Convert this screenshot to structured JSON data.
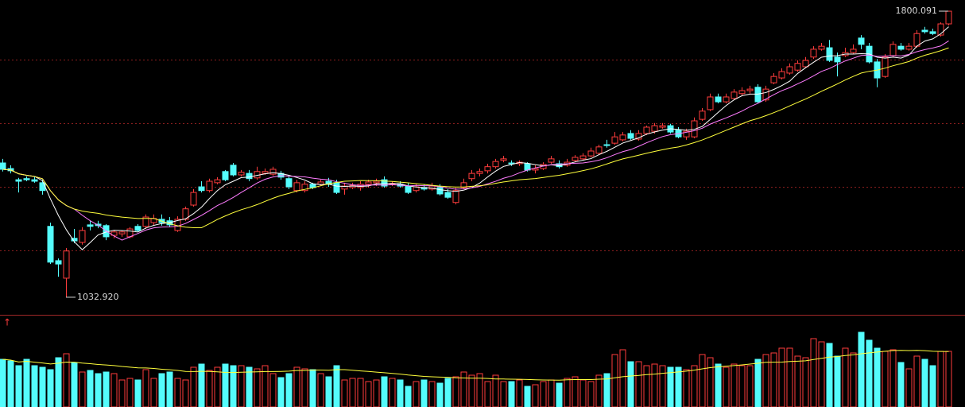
{
  "chart_data": {
    "type": "candlestick",
    "open": [
      1393,
      1378,
      1348,
      1351,
      1348,
      1340,
      1223,
      1131,
      1084,
      1191,
      1180,
      1227,
      1229,
      1225,
      1199,
      1203,
      1195,
      1223,
      1223,
      1233,
      1242,
      1238,
      1212,
      1242,
      1280,
      1329,
      1319,
      1340,
      1370,
      1387,
      1361,
      1365,
      1353,
      1365,
      1363,
      1365,
      1351,
      1319,
      1319,
      1336,
      1336,
      1344,
      1340,
      1323,
      1327,
      1327,
      1336,
      1340,
      1348,
      1336,
      1336,
      1331,
      1319,
      1327,
      1323,
      1327,
      1314,
      1287,
      1327,
      1351,
      1365,
      1372,
      1383,
      1400,
      1393,
      1391,
      1391,
      1374,
      1378,
      1395,
      1391,
      1387,
      1400,
      1404,
      1412,
      1419,
      1442,
      1446,
      1455,
      1472,
      1457,
      1472,
      1478,
      1489,
      1493,
      1481,
      1463,
      1463,
      1510,
      1536,
      1570,
      1557,
      1566,
      1579,
      1587,
      1596,
      1562,
      1608,
      1621,
      1634,
      1642,
      1651,
      1677,
      1698,
      1702,
      1677,
      1681,
      1689,
      1728,
      1706,
      1664,
      1625,
      1681,
      1706,
      1698,
      1706,
      1749,
      1745,
      1736,
      1766
    ],
    "high": [
      1404,
      1387,
      1353,
      1357,
      1357,
      1348,
      1233,
      1137,
      1165,
      1216,
      1221,
      1238,
      1238,
      1229,
      1212,
      1212,
      1221,
      1229,
      1255,
      1255,
      1255,
      1248,
      1250,
      1276,
      1323,
      1344,
      1351,
      1355,
      1374,
      1393,
      1374,
      1374,
      1383,
      1378,
      1383,
      1372,
      1357,
      1348,
      1344,
      1340,
      1348,
      1353,
      1348,
      1340,
      1340,
      1344,
      1348,
      1351,
      1357,
      1344,
      1344,
      1340,
      1336,
      1336,
      1340,
      1336,
      1323,
      1327,
      1351,
      1374,
      1378,
      1391,
      1404,
      1412,
      1400,
      1400,
      1395,
      1387,
      1395,
      1412,
      1400,
      1404,
      1414,
      1419,
      1434,
      1442,
      1455,
      1476,
      1476,
      1481,
      1481,
      1493,
      1500,
      1500,
      1498,
      1489,
      1485,
      1515,
      1540,
      1579,
      1579,
      1579,
      1591,
      1596,
      1600,
      1604,
      1600,
      1634,
      1647,
      1660,
      1668,
      1677,
      1706,
      1715,
      1723,
      1689,
      1702,
      1711,
      1736,
      1715,
      1672,
      1685,
      1719,
      1715,
      1715,
      1749,
      1758,
      1753,
      1770,
      1800.091
    ],
    "low": [
      1370,
      1365,
      1314,
      1344,
      1340,
      1308,
      1122,
      1088,
      1032.92,
      1178,
      1174,
      1212,
      1218,
      1186,
      1191,
      1195,
      1191,
      1208,
      1216,
      1227,
      1225,
      1221,
      1208,
      1238,
      1276,
      1314,
      1314,
      1336,
      1344,
      1357,
      1357,
      1344,
      1348,
      1361,
      1359,
      1348,
      1323,
      1314,
      1314,
      1323,
      1331,
      1329,
      1310,
      1308,
      1323,
      1319,
      1327,
      1331,
      1327,
      1331,
      1327,
      1310,
      1314,
      1319,
      1319,
      1306,
      1297,
      1282,
      1323,
      1344,
      1357,
      1365,
      1378,
      1395,
      1385,
      1385,
      1370,
      1365,
      1374,
      1391,
      1378,
      1383,
      1395,
      1400,
      1408,
      1414,
      1434,
      1442,
      1451,
      1455,
      1453,
      1468,
      1472,
      1485,
      1472,
      1459,
      1455,
      1459,
      1506,
      1532,
      1553,
      1553,
      1562,
      1574,
      1579,
      1553,
      1557,
      1604,
      1617,
      1630,
      1638,
      1647,
      1672,
      1694,
      1664,
      1625,
      1677,
      1685,
      1698,
      1660,
      1596,
      1621,
      1677,
      1694,
      1694,
      1702,
      1740,
      1736,
      1732,
      1762
    ],
    "close": [
      1376,
      1372,
      1344,
      1348,
      1344,
      1319,
      1127,
      1122,
      1157,
      1184,
      1212,
      1223,
      1225,
      1195,
      1208,
      1208,
      1216,
      1212,
      1248,
      1244,
      1233,
      1227,
      1242,
      1270,
      1314,
      1319,
      1344,
      1348,
      1348,
      1361,
      1368,
      1351,
      1370,
      1370,
      1376,
      1355,
      1329,
      1340,
      1336,
      1327,
      1342,
      1336,
      1314,
      1331,
      1333,
      1336,
      1342,
      1344,
      1331,
      1338,
      1331,
      1314,
      1329,
      1323,
      1331,
      1310,
      1301,
      1319,
      1340,
      1365,
      1370,
      1383,
      1397,
      1404,
      1391,
      1395,
      1374,
      1378,
      1389,
      1404,
      1383,
      1395,
      1408,
      1412,
      1425,
      1436,
      1440,
      1463,
      1468,
      1459,
      1472,
      1489,
      1493,
      1493,
      1476,
      1463,
      1478,
      1506,
      1532,
      1570,
      1557,
      1570,
      1583,
      1587,
      1591,
      1557,
      1591,
      1625,
      1638,
      1651,
      1660,
      1668,
      1698,
      1706,
      1668,
      1664,
      1689,
      1698,
      1711,
      1664,
      1621,
      1677,
      1711,
      1698,
      1706,
      1740,
      1745,
      1740,
      1766,
      1800
    ],
    "ylim": [
      988,
      1830
    ],
    "up_color": "#ff3c3c",
    "down_color": "#54fcfc",
    "ma_periods": [
      5,
      10,
      20
    ],
    "ma_colors": [
      "#ffffff",
      "#ff7cff",
      "#ffff3c"
    ],
    "high_label": "1800.091",
    "low_label": "1032.920",
    "volume": {
      "type": "bar",
      "values": [
        60,
        58,
        52,
        60,
        52,
        50,
        47,
        62,
        67,
        56,
        44,
        46,
        42,
        44,
        42,
        34,
        36,
        34,
        47,
        36,
        42,
        44,
        36,
        34,
        50,
        54,
        46,
        50,
        54,
        52,
        52,
        50,
        48,
        52,
        42,
        37,
        42,
        50,
        48,
        47,
        42,
        38,
        52,
        34,
        36,
        36,
        32,
        34,
        38,
        36,
        34,
        26,
        32,
        34,
        32,
        30,
        36,
        38,
        44,
        40,
        42,
        32,
        40,
        32,
        32,
        34,
        26,
        28,
        32,
        34,
        30,
        36,
        38,
        34,
        32,
        40,
        42,
        66,
        72,
        57,
        57,
        52,
        54,
        52,
        50,
        50,
        47,
        52,
        66,
        62,
        54,
        50,
        54,
        52,
        52,
        60,
        66,
        68,
        74,
        74,
        64,
        62,
        86,
        82,
        80,
        64,
        74,
        68,
        94,
        84,
        74,
        70,
        72,
        56,
        48,
        64,
        60,
        52,
        70,
        70
      ],
      "ylim": [
        0,
        114
      ],
      "ma_period": 20,
      "ma_color": "#ffff3c"
    },
    "indicator_icon": "↑"
  }
}
